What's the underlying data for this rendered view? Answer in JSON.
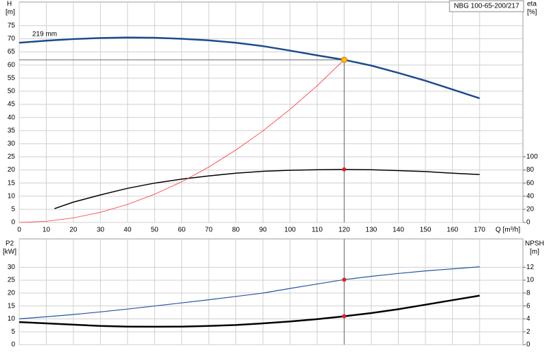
{
  "chart_data": [
    {
      "type": "line",
      "title": "NBG 100-65-200/217",
      "annotation": "219 mm",
      "y_label": "H",
      "y_unit": "[m]",
      "y2_label": "eta",
      "y2_unit": "[%]",
      "x_label": "Q [m³/h]",
      "xlim": [
        0,
        186
      ],
      "xticks": [
        0,
        10,
        20,
        30,
        40,
        50,
        60,
        70,
        80,
        90,
        100,
        110,
        120,
        130,
        140,
        150,
        160,
        170
      ],
      "ylim": [
        0,
        84
      ],
      "yticks": [
        0,
        5,
        10,
        15,
        20,
        25,
        30,
        35,
        40,
        45,
        50,
        55,
        60,
        65,
        70,
        75
      ],
      "y2lim": [
        0,
        336
      ],
      "y2ticks": [
        0,
        20,
        40,
        60,
        80,
        100
      ],
      "grid": true,
      "series": [
        {
          "color": "#1c4b8c",
          "width": 2.5,
          "x": [
            0,
            10,
            20,
            30,
            40,
            50,
            60,
            70,
            80,
            90,
            100,
            110,
            120,
            130,
            140,
            150,
            160,
            170
          ],
          "values": [
            68.5,
            69.3,
            69.9,
            70.3,
            70.5,
            70.4,
            70.0,
            69.4,
            68.5,
            67.2,
            65.5,
            63.7,
            62,
            59.8,
            57,
            54,
            50.7,
            47.3
          ]
        },
        {
          "color": "#000000",
          "width": 1.5,
          "axis": "y2",
          "x": [
            13,
            20,
            30,
            40,
            50,
            60,
            70,
            80,
            90,
            100,
            110,
            120,
            130,
            140,
            150,
            160,
            170
          ],
          "values": [
            21,
            31,
            42,
            52,
            60,
            66,
            71,
            75,
            78,
            79.6,
            80.4,
            80.8,
            80.4,
            79,
            77.6,
            75,
            73
          ]
        },
        {
          "color": "#ff3030",
          "width": 0.8,
          "x": [
            0,
            10,
            20,
            30,
            40,
            50,
            60,
            70,
            80,
            90,
            100,
            110,
            120
          ],
          "values": [
            0,
            0.43,
            1.72,
            3.88,
            6.89,
            10.76,
            15.5,
            21.1,
            27.6,
            34.9,
            43.1,
            52.1,
            62
          ]
        }
      ],
      "duty_point": {
        "x": 120,
        "y": 62,
        "y2": 80.8
      }
    },
    {
      "type": "line",
      "y_label": "P2",
      "y_unit": "[kW]",
      "y2_label": "NPSH",
      "y2_unit": "[m]",
      "xlim": [
        0,
        186
      ],
      "xticks": [
        0,
        10,
        20,
        30,
        40,
        50,
        60,
        70,
        80,
        90,
        100,
        110,
        120,
        130,
        140,
        150,
        160,
        170
      ],
      "ylim": [
        0,
        41
      ],
      "yticks": [
        0,
        5,
        10,
        15,
        20,
        25,
        30
      ],
      "y2lim": [
        0,
        16.4
      ],
      "y2ticks": [
        0,
        2,
        4,
        6,
        8,
        10,
        12
      ],
      "grid": true,
      "series": [
        {
          "color": "#2255a0",
          "width": 1.2,
          "x": [
            0,
            10,
            20,
            30,
            40,
            50,
            60,
            70,
            80,
            90,
            100,
            110,
            120,
            130,
            140,
            150,
            160,
            170
          ],
          "values": [
            10,
            10.8,
            11.7,
            12.7,
            13.8,
            15,
            16.2,
            17.4,
            18.7,
            20,
            21.8,
            23.5,
            25.2,
            26.5,
            27.6,
            28.6,
            29.4,
            30.2
          ]
        },
        {
          "color": "#000000",
          "width": 2.5,
          "axis": "y2",
          "x": [
            0,
            10,
            20,
            30,
            40,
            50,
            60,
            70,
            80,
            90,
            100,
            110,
            120,
            130,
            140,
            150,
            160,
            170
          ],
          "values": [
            3.5,
            3.3,
            3.1,
            2.9,
            2.8,
            2.78,
            2.8,
            2.9,
            3.05,
            3.3,
            3.6,
            3.95,
            4.4,
            4.9,
            5.5,
            6.2,
            6.9,
            7.6
          ]
        }
      ],
      "duty_point": {
        "x": 120,
        "y": 25.2,
        "y2": 4.4
      }
    }
  ]
}
